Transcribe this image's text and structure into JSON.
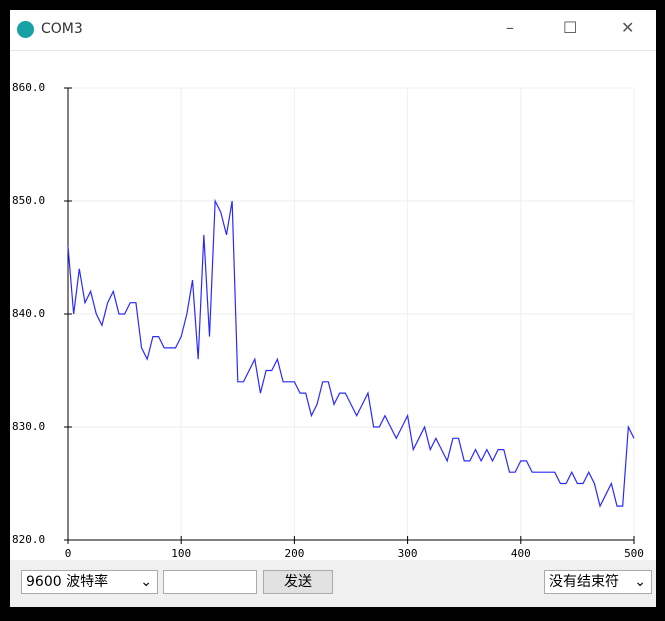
{
  "window": {
    "title": "COM3"
  },
  "controls": {
    "baud": "9600 波特率",
    "send": "发送",
    "line_ending": "没有结束符"
  },
  "chart_data": {
    "type": "line",
    "grid": true,
    "xlim": [
      0,
      500
    ],
    "xticks": [
      0,
      100,
      200,
      300,
      400,
      500
    ],
    "ylim": [
      820,
      860
    ],
    "yticks": [
      {
        "value": 820,
        "label": "820.0"
      },
      {
        "value": 830,
        "label": "830.0"
      },
      {
        "value": 840,
        "label": "840.0"
      },
      {
        "value": 850,
        "label": "850.0"
      },
      {
        "value": 860,
        "label": "860.0"
      }
    ],
    "x": [
      0,
      5,
      10,
      15,
      20,
      25,
      30,
      35,
      40,
      45,
      50,
      55,
      60,
      65,
      70,
      75,
      80,
      85,
      90,
      95,
      100,
      105,
      110,
      115,
      120,
      125,
      130,
      135,
      140,
      145,
      150,
      155,
      160,
      165,
      170,
      175,
      180,
      185,
      190,
      195,
      200,
      205,
      210,
      215,
      220,
      225,
      230,
      235,
      240,
      245,
      250,
      255,
      260,
      265,
      270,
      275,
      280,
      285,
      290,
      295,
      300,
      305,
      310,
      315,
      320,
      325,
      330,
      335,
      340,
      345,
      350,
      355,
      360,
      365,
      370,
      375,
      380,
      385,
      390,
      395,
      400,
      405,
      410,
      415,
      420,
      425,
      430,
      435,
      440,
      445,
      450,
      455,
      460,
      465,
      470,
      475,
      480,
      485,
      490,
      495,
      500
    ],
    "series": [
      {
        "color": "#2a2aff",
        "values": [
          846,
          840,
          844,
          841,
          842,
          840,
          839,
          841,
          842,
          840,
          840,
          841,
          841,
          837,
          836,
          838,
          838,
          837,
          837,
          837,
          838,
          840,
          843,
          836,
          847,
          838,
          850,
          849,
          847,
          850,
          834,
          834,
          835,
          836,
          833,
          835,
          835,
          836,
          834,
          834,
          834,
          833,
          833,
          831,
          832,
          834,
          834,
          832,
          833,
          833,
          832,
          831,
          832,
          833,
          830,
          830,
          831,
          830,
          829,
          830,
          831,
          828,
          829,
          830,
          828,
          829,
          828,
          827,
          829,
          829,
          827,
          827,
          828,
          827,
          828,
          827,
          828,
          828,
          826,
          826,
          827,
          827,
          826,
          826,
          826,
          826,
          826,
          825,
          825,
          826,
          825,
          825,
          826,
          825,
          823,
          824,
          825,
          823,
          823,
          830,
          829
        ]
      }
    ]
  }
}
